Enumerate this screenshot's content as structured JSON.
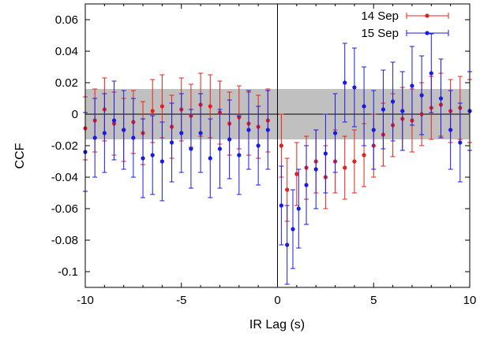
{
  "chart_data": {
    "type": "scatter",
    "xlabel": "IR Lag (s)",
    "ylabel": "CCF",
    "xlim": [
      -10,
      10
    ],
    "ylim": [
      -0.11,
      0.07
    ],
    "x_ticks": [
      -10,
      -5,
      0,
      5,
      10
    ],
    "x_tick_labels": [
      "-10",
      "-5",
      "0",
      "5",
      "10"
    ],
    "y_ticks": [
      0.06,
      0.04,
      0.02,
      0,
      -0.02,
      -0.04,
      -0.06,
      -0.08,
      -0.1
    ],
    "y_tick_labels": [
      "0.06",
      "0.04",
      "0.02",
      "0",
      "-0.02",
      "-0.04",
      "-0.06",
      "-0.08",
      "-0.1"
    ],
    "significance_band": [
      -0.016,
      0.016
    ],
    "grid": false,
    "legend_position": "top-right",
    "series": [
      {
        "name": "14 Sep",
        "color": "#e8201d",
        "error": 0.02,
        "x": [
          -10,
          -9.5,
          -9,
          -8.5,
          -8,
          -7.5,
          -7,
          -6.5,
          -6,
          -5.5,
          -5,
          -4.5,
          -4,
          -3.5,
          -3,
          -2.5,
          -2,
          -1.5,
          -1,
          -0.5,
          0.2,
          0.5,
          1,
          1.5,
          2,
          2.5,
          3,
          3.5,
          4,
          4.5,
          5,
          5.5,
          6,
          6.5,
          7,
          7.5,
          8,
          8.5,
          9,
          9.5,
          10
        ],
        "y": [
          -0.009,
          -0.004,
          0.003,
          -0.006,
          -0.01,
          -0.005,
          -0.012,
          0.002,
          0.005,
          -0.008,
          0.003,
          -0.001,
          0.006,
          0.005,
          0.001,
          -0.006,
          -0.002,
          -0.006,
          -0.008,
          -0.004,
          -0.02,
          -0.048,
          -0.038,
          -0.034,
          -0.03,
          -0.04,
          -0.03,
          -0.034,
          -0.03,
          -0.026,
          -0.02,
          -0.013,
          -0.007,
          -0.003,
          -0.004,
          0,
          0.004,
          0.006,
          0.002,
          0.004,
          0.002
        ]
      },
      {
        "name": "15 Sep",
        "color": "#1a1ae6",
        "error": 0.025,
        "x": [
          -10,
          -9.5,
          -9,
          -8.5,
          -8,
          -7.5,
          -7,
          -6.5,
          -6,
          -5.5,
          -5,
          -4.5,
          -4,
          -3.5,
          -3,
          -2.5,
          -2,
          -1.5,
          -1,
          -0.5,
          0.2,
          0.5,
          0.8,
          1.1,
          1.5,
          2,
          2.5,
          3,
          3.5,
          4,
          4.5,
          5,
          5.5,
          6,
          6.5,
          7,
          7.5,
          8,
          8.5,
          9,
          9.5,
          10
        ],
        "y": [
          -0.024,
          -0.015,
          -0.012,
          -0.004,
          -0.01,
          -0.015,
          -0.028,
          -0.026,
          -0.03,
          -0.018,
          -0.012,
          -0.022,
          -0.012,
          -0.028,
          -0.022,
          -0.016,
          -0.026,
          -0.01,
          -0.02,
          -0.01,
          -0.058,
          -0.083,
          -0.073,
          -0.06,
          -0.045,
          -0.035,
          -0.025,
          -0.012,
          0.02,
          0.017,
          0.005,
          -0.01,
          0.003,
          0.008,
          0.002,
          0.018,
          0.012,
          0.026,
          0.01,
          -0.01,
          -0.018,
          0.002
        ]
      }
    ]
  }
}
